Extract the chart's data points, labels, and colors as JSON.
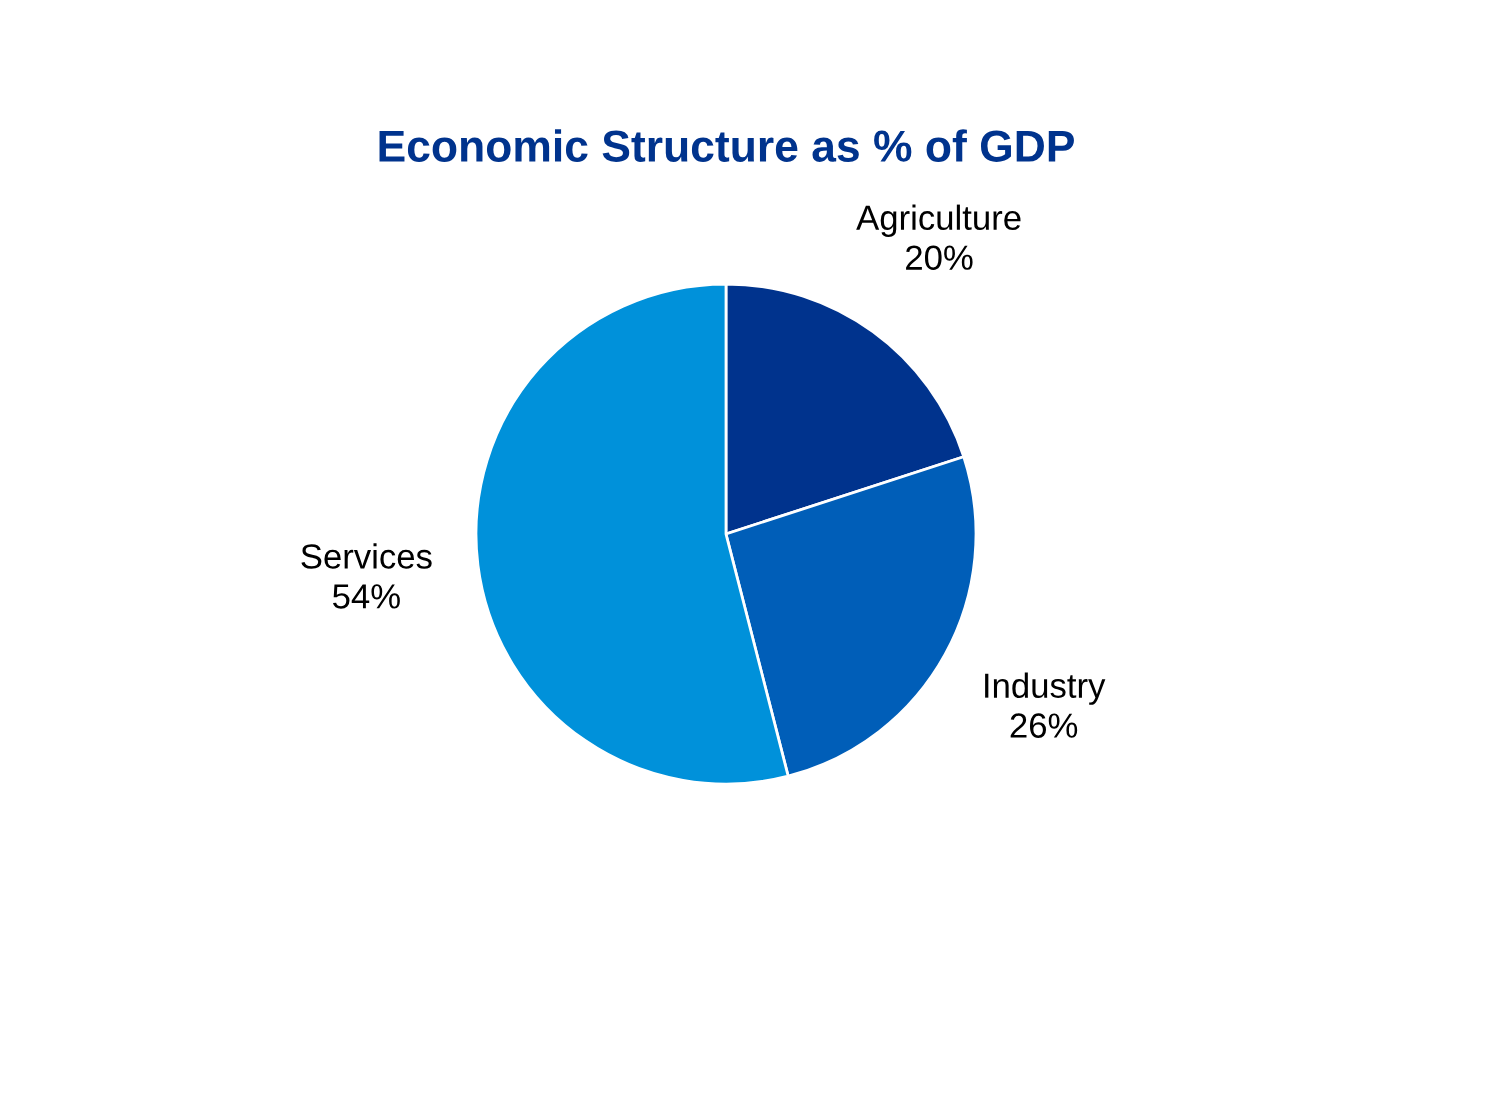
{
  "chart_data": {
    "type": "pie",
    "title": "Economic Structure as % of GDP",
    "categories": [
      "Agriculture",
      "Industry",
      "Services"
    ],
    "values": [
      20,
      26,
      54
    ],
    "value_labels": [
      "20%",
      "26%",
      "54%"
    ],
    "colors": [
      "#00338d",
      "#005eb8",
      "#0091da"
    ]
  }
}
